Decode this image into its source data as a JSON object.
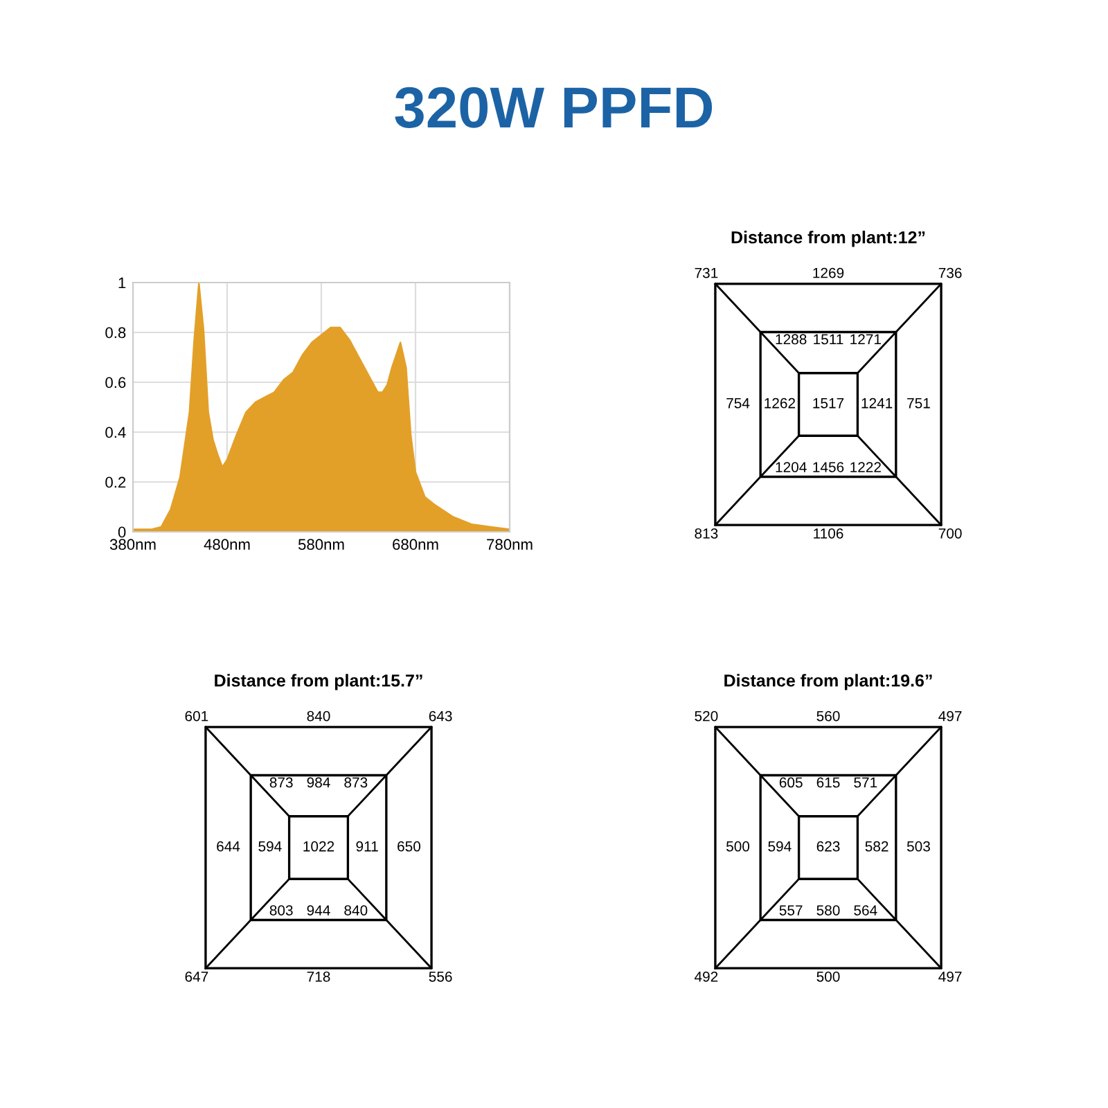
{
  "chart_data": [
    {
      "type": "area",
      "title": "320W PPFD",
      "x": [
        380,
        400,
        410,
        420,
        430,
        440,
        445,
        450,
        455,
        460,
        465,
        470,
        475,
        480,
        490,
        500,
        510,
        520,
        530,
        540,
        550,
        560,
        570,
        580,
        590,
        600,
        610,
        620,
        630,
        640,
        645,
        650,
        655,
        664,
        670,
        675,
        680,
        690,
        700,
        720,
        740,
        760,
        780
      ],
      "values": [
        0.01,
        0.01,
        0.02,
        0.09,
        0.22,
        0.48,
        0.77,
        1.0,
        0.81,
        0.48,
        0.37,
        0.31,
        0.26,
        0.29,
        0.39,
        0.48,
        0.52,
        0.54,
        0.56,
        0.61,
        0.64,
        0.71,
        0.76,
        0.79,
        0.82,
        0.82,
        0.77,
        0.7,
        0.63,
        0.56,
        0.56,
        0.59,
        0.66,
        0.76,
        0.66,
        0.39,
        0.24,
        0.14,
        0.11,
        0.06,
        0.03,
        0.02,
        0.01
      ],
      "xlim": [
        380,
        780
      ],
      "xticks": [
        {
          "value": 380,
          "label": "380nm"
        },
        {
          "value": 480,
          "label": "480nm"
        },
        {
          "value": 580,
          "label": "580nm"
        },
        {
          "value": 680,
          "label": "680nm"
        },
        {
          "value": 780,
          "label": "780nm"
        }
      ],
      "ylim": [
        0,
        1
      ],
      "yticks": [
        0,
        0.2,
        0.4,
        0.6,
        0.8,
        1
      ],
      "grid": true,
      "color": "#e3a028"
    },
    {
      "type": "other",
      "title": "Distance from plant:12”",
      "annotations": [
        "731",
        "1269",
        "736",
        "754",
        "751",
        "813",
        "1106",
        "700",
        "1288",
        "1511",
        "1271",
        "1262",
        "1241",
        "1204",
        "1456",
        "1222",
        "1517"
      ]
    },
    {
      "type": "other",
      "title": "Distance from plant:15.7”",
      "annotations": [
        "601",
        "840",
        "643",
        "644",
        "650",
        "647",
        "718",
        "556",
        "873",
        "984",
        "873",
        "594",
        "911",
        "803",
        "944",
        "840",
        "1022"
      ]
    },
    {
      "type": "other",
      "title": "Distance from plant:19.6”",
      "annotations": [
        "520",
        "560",
        "497",
        "500",
        "503",
        "492",
        "500",
        "497",
        "605",
        "615",
        "571",
        "594",
        "582",
        "557",
        "580",
        "564",
        "623"
      ]
    }
  ]
}
